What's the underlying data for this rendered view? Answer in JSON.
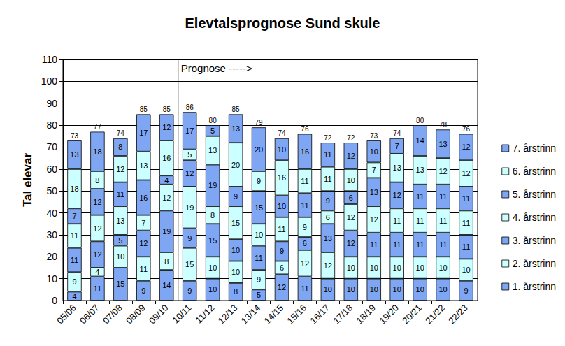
{
  "chart_data": {
    "type": "bar",
    "title": "Elevtalsprognose Sund skule",
    "y_label": "Tal elevar",
    "categories": [
      "05/06",
      "06/07",
      "07/08",
      "08/09",
      "09/10",
      "10/11",
      "11/12",
      "12/13",
      "13/14",
      "14/15",
      "15/16",
      "16/17",
      "17/18",
      "18/19",
      "19/20",
      "20/21",
      "21/22",
      "22/23"
    ],
    "series": [
      {
        "name": "1. årstrinn",
        "color": "#7fa6f2",
        "values": [
          4,
          11,
          15,
          9,
          14,
          9,
          10,
          8,
          5,
          12,
          11,
          10,
          10,
          10,
          10,
          10,
          10,
          9
        ]
      },
      {
        "name": "2. årstrinn",
        "color": "#ccffff",
        "values": [
          9,
          4,
          10,
          11,
          8,
          15,
          10,
          10,
          9,
          6,
          12,
          12,
          10,
          10,
          10,
          10,
          10,
          10
        ]
      },
      {
        "name": "3. årstrinn",
        "color": "#7fa6f2",
        "values": [
          11,
          12,
          5,
          12,
          19,
          9,
          15,
          10,
          11,
          9,
          6,
          13,
          12,
          11,
          11,
          11,
          11,
          11
        ]
      },
      {
        "name": "4. årstrinn",
        "color": "#ccffff",
        "values": [
          11,
          12,
          13,
          7,
          12,
          19,
          8,
          15,
          10,
          11,
          9,
          6,
          12,
          12,
          11,
          11,
          11,
          11
        ]
      },
      {
        "name": "5. årstrinn",
        "color": "#7fa6f2",
        "values": [
          7,
          12,
          11,
          16,
          4,
          12,
          19,
          9,
          15,
          10,
          11,
          9,
          6,
          13,
          12,
          11,
          11,
          11
        ]
      },
      {
        "name": "6. årstrinn",
        "color": "#ccffff",
        "values": [
          18,
          8,
          12,
          13,
          16,
          5,
          13,
          20,
          9,
          16,
          11,
          11,
          10,
          7,
          13,
          13,
          12,
          12
        ]
      },
      {
        "name": "7. årstrinn",
        "color": "#7fa6f2",
        "values": [
          13,
          18,
          8,
          17,
          12,
          17,
          5,
          13,
          20,
          10,
          16,
          11,
          12,
          10,
          7,
          14,
          13,
          12
        ]
      }
    ],
    "totals": [
      73,
      77,
      74,
      85,
      85,
      86,
      80,
      85,
      79,
      74,
      76,
      72,
      72,
      73,
      74,
      80,
      78,
      76
    ],
    "annotations": [
      {
        "text": "Prognose ----->",
        "x": "10/11"
      }
    ],
    "ylim": [
      0,
      110
    ],
    "yticks": [
      0,
      10,
      20,
      30,
      40,
      50,
      60,
      70,
      80,
      90,
      100,
      110
    ],
    "stacked": true,
    "data_labels": true,
    "grid": true,
    "legend": "right"
  }
}
